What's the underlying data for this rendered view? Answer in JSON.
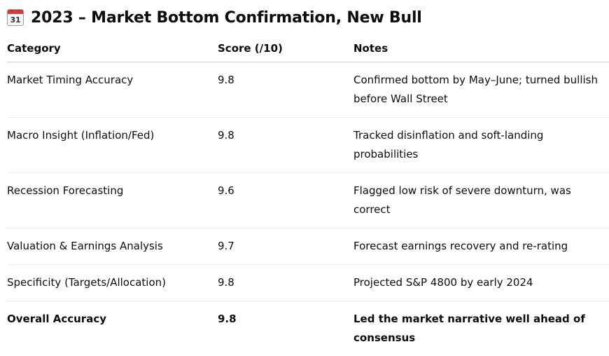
{
  "title": {
    "icon": "calendar-icon",
    "icon_label": "31",
    "text": "2023 – Market Bottom Confirmation, New Bull"
  },
  "table": {
    "headers": {
      "category": "Category",
      "score": "Score (/10)",
      "notes": "Notes"
    },
    "rows": [
      {
        "category": "Market Timing Accuracy",
        "score": "9.8",
        "notes": "Confirmed bottom by May–June; turned bullish before Wall Street"
      },
      {
        "category": "Macro Insight (Inflation/Fed)",
        "score": "9.8",
        "notes": "Tracked disinflation and soft-landing probabilities"
      },
      {
        "category": "Recession Forecasting",
        "score": "9.6",
        "notes": "Flagged low risk of severe downturn, was correct"
      },
      {
        "category": "Valuation & Earnings Analysis",
        "score": "9.7",
        "notes": "Forecast earnings recovery and re-rating"
      },
      {
        "category": "Specificity (Targets/Allocation)",
        "score": "9.8",
        "notes": "Projected S&P 4800 by early 2024"
      },
      {
        "category": "Overall Accuracy",
        "score": "9.8",
        "notes": "Led the market narrative well ahead of consensus"
      }
    ]
  }
}
